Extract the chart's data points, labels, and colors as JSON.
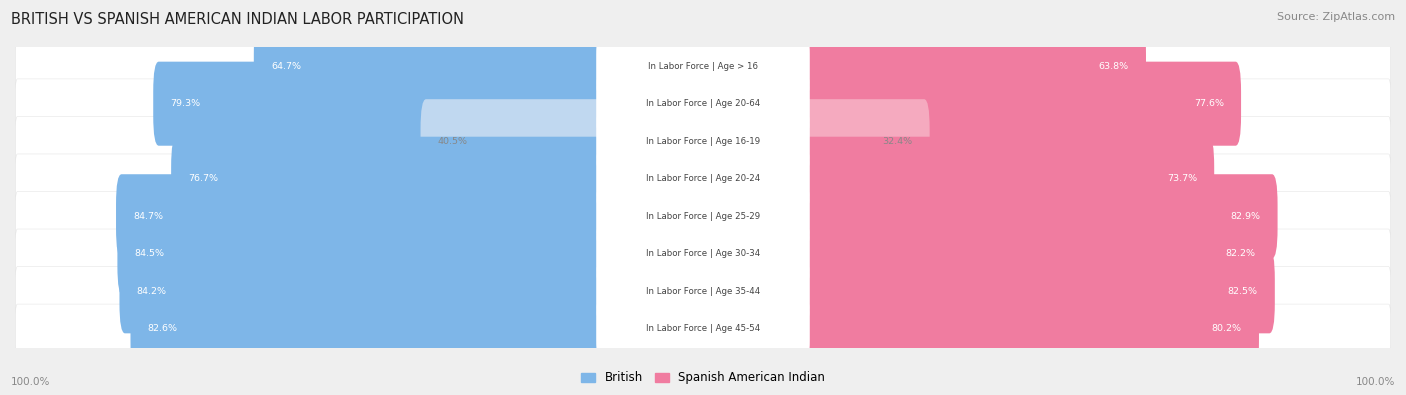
{
  "title": "BRITISH VS SPANISH AMERICAN INDIAN LABOR PARTICIPATION",
  "source": "Source: ZipAtlas.com",
  "categories": [
    "In Labor Force | Age > 16",
    "In Labor Force | Age 20-64",
    "In Labor Force | Age 16-19",
    "In Labor Force | Age 20-24",
    "In Labor Force | Age 25-29",
    "In Labor Force | Age 30-34",
    "In Labor Force | Age 35-44",
    "In Labor Force | Age 45-54"
  ],
  "british": [
    64.7,
    79.3,
    40.5,
    76.7,
    84.7,
    84.5,
    84.2,
    82.6
  ],
  "spanish": [
    63.8,
    77.6,
    32.4,
    73.7,
    82.9,
    82.2,
    82.5,
    80.2
  ],
  "british_colors": [
    "#7EB6E8",
    "#7EB6E8",
    "#C0D8F0",
    "#7EB6E8",
    "#7EB6E8",
    "#7EB6E8",
    "#7EB6E8",
    "#7EB6E8"
  ],
  "spanish_colors": [
    "#F07CA0",
    "#F07CA0",
    "#F5AABF",
    "#F07CA0",
    "#F07CA0",
    "#F07CA0",
    "#F07CA0",
    "#F07CA0"
  ],
  "british_label_colors": [
    "white",
    "white",
    "#888888",
    "white",
    "white",
    "white",
    "white",
    "white"
  ],
  "spanish_label_colors": [
    "white",
    "white",
    "#888888",
    "white",
    "white",
    "white",
    "white",
    "white"
  ],
  "bg_color": "#EFEFEF",
  "row_bg_color": "#FFFFFF",
  "legend_british": "British",
  "legend_spanish": "Spanish American Indian",
  "max_val": 100.0
}
